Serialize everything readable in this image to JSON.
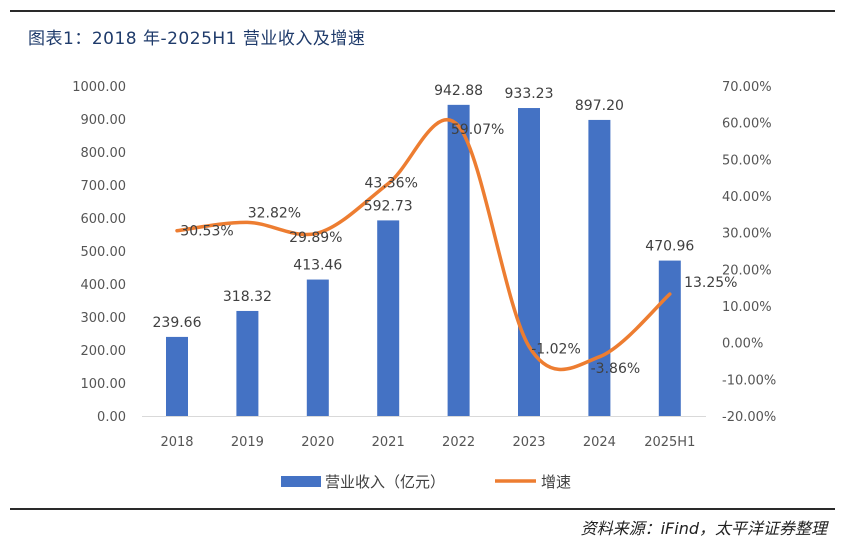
{
  "page": {
    "title": "图表1：2018 年-2025H1 营业收入及增速",
    "source": "资料来源：iFind，太平洋证券整理"
  },
  "colors": {
    "bar": "#4472C4",
    "line": "#ED7D31",
    "rule": "#2a2a2a",
    "title": "#1f3b6b"
  },
  "chart_data": {
    "type": "bar",
    "title": "2018 年-2025H1 营业收入及增速",
    "categories": [
      "2018",
      "2019",
      "2020",
      "2021",
      "2022",
      "2023",
      "2024",
      "2025H1"
    ],
    "series": [
      {
        "name": "营业收入（亿元）",
        "type": "bar",
        "axis": "left",
        "values": [
          239.66,
          318.32,
          413.46,
          592.73,
          942.88,
          933.23,
          897.2,
          470.96
        ],
        "labels": [
          "239.66",
          "318.32",
          "413.46",
          "592.73",
          "942.88",
          "933.23",
          "897.20",
          "470.96"
        ]
      },
      {
        "name": "增速",
        "type": "line",
        "axis": "right",
        "smooth": true,
        "values": [
          30.53,
          32.82,
          29.89,
          43.36,
          59.07,
          -1.02,
          -3.86,
          13.25
        ],
        "labels": [
          "30.53%",
          "32.82%",
          "29.89%",
          "43.36%",
          "59.07%",
          "-1.02%",
          "-3.86%",
          "13.25%"
        ]
      }
    ],
    "y_left": {
      "min": 0,
      "max": 1000,
      "step": 100,
      "ticks": [
        "0.00",
        "100.00",
        "200.00",
        "300.00",
        "400.00",
        "500.00",
        "600.00",
        "700.00",
        "800.00",
        "900.00",
        "1000.00"
      ]
    },
    "y_right": {
      "min": -20,
      "max": 70,
      "step": 10,
      "ticks": [
        "-20.00%",
        "-10.00%",
        "0.00%",
        "10.00%",
        "20.00%",
        "30.00%",
        "40.00%",
        "50.00%",
        "60.00%",
        "70.00%"
      ]
    },
    "grid": false,
    "legend": {
      "position": "bottom",
      "entries": [
        "营业收入（亿元）",
        "增速"
      ]
    }
  }
}
